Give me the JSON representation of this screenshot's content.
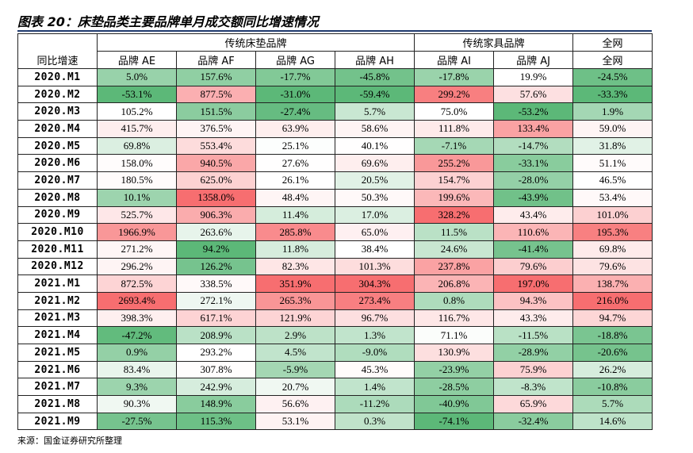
{
  "title": "图表 20：床垫品类主要品牌单月成交额同比增速情况",
  "table": {
    "groups": [
      "传统床垫品牌",
      "传统家具品牌",
      "全网"
    ],
    "columns": [
      "同比增速",
      "品牌 AE",
      "品牌 AF",
      "品牌 AG",
      "品牌 AH",
      "品牌 AI",
      "品牌 AJ",
      "全网"
    ],
    "rows": [
      [
        "2020.M1",
        "5.0%",
        "157.6%",
        "-17.7%",
        "-45.8%",
        "-17.8%",
        "19.9%",
        "-24.5%"
      ],
      [
        "2020.M2",
        "-53.1%",
        "877.5%",
        "-31.0%",
        "-59.4%",
        "299.2%",
        "57.6%",
        "-33.3%"
      ],
      [
        "2020.M3",
        "105.2%",
        "151.5%",
        "-27.4%",
        "5.7%",
        "75.0%",
        "-53.2%",
        "1.9%"
      ],
      [
        "2020.M4",
        "415.7%",
        "376.5%",
        "63.9%",
        "58.6%",
        "111.8%",
        "133.4%",
        "59.0%"
      ],
      [
        "2020.M5",
        "69.8%",
        "553.4%",
        "25.1%",
        "40.1%",
        "-7.1%",
        "-14.7%",
        "31.8%"
      ],
      [
        "2020.M6",
        "158.0%",
        "940.5%",
        "27.6%",
        "69.6%",
        "255.2%",
        "-33.1%",
        "51.1%"
      ],
      [
        "2020.M7",
        "180.5%",
        "625.0%",
        "26.1%",
        "20.5%",
        "154.7%",
        "-28.0%",
        "46.5%"
      ],
      [
        "2020.M8",
        "10.1%",
        "1358.0%",
        "48.4%",
        "50.3%",
        "199.6%",
        "-43.9%",
        "53.4%"
      ],
      [
        "2020.M9",
        "525.7%",
        "906.3%",
        "11.4%",
        "17.0%",
        "328.2%",
        "43.4%",
        "101.0%"
      ],
      [
        "2020.M10",
        "1966.9%",
        "263.6%",
        "285.8%",
        "65.0%",
        "11.5%",
        "110.6%",
        "195.3%"
      ],
      [
        "2020.M11",
        "271.2%",
        "94.2%",
        "11.8%",
        "38.4%",
        "24.6%",
        "-41.4%",
        "69.8%"
      ],
      [
        "2020.M12",
        "296.2%",
        "126.2%",
        "82.3%",
        "101.3%",
        "237.8%",
        "79.6%",
        "79.6%"
      ],
      [
        "2021.M1",
        "872.5%",
        "338.5%",
        "351.9%",
        "304.3%",
        "206.8%",
        "197.0%",
        "138.7%"
      ],
      [
        "2021.M2",
        "2693.4%",
        "272.1%",
        "265.3%",
        "273.4%",
        "0.8%",
        "94.3%",
        "216.0%"
      ],
      [
        "2021.M3",
        "398.3%",
        "617.1%",
        "121.9%",
        "96.7%",
        "116.7%",
        "43.3%",
        "94.7%"
      ],
      [
        "2021.M4",
        "-47.2%",
        "208.9%",
        "2.9%",
        "1.3%",
        "71.1%",
        "-11.5%",
        "-18.8%"
      ],
      [
        "2021.M5",
        "0.9%",
        "293.2%",
        "4.5%",
        "-9.0%",
        "130.9%",
        "-28.9%",
        "-20.6%"
      ],
      [
        "2021.M6",
        "83.4%",
        "307.8%",
        "-5.9%",
        "45.3%",
        "-23.9%",
        "75.9%",
        "26.2%"
      ],
      [
        "2021.M7",
        "9.3%",
        "242.9%",
        "20.7%",
        "1.4%",
        "-28.5%",
        "-8.3%",
        "-10.8%"
      ],
      [
        "2021.M8",
        "90.3%",
        "148.9%",
        "56.6%",
        "-11.2%",
        "-40.9%",
        "65.9%",
        "5.7%"
      ],
      [
        "2021.M9",
        "-27.5%",
        "115.3%",
        "53.1%",
        "0.3%",
        "-74.1%",
        "-32.4%",
        "14.6%"
      ]
    ]
  },
  "source": "来源：国金证券研究所整理"
}
